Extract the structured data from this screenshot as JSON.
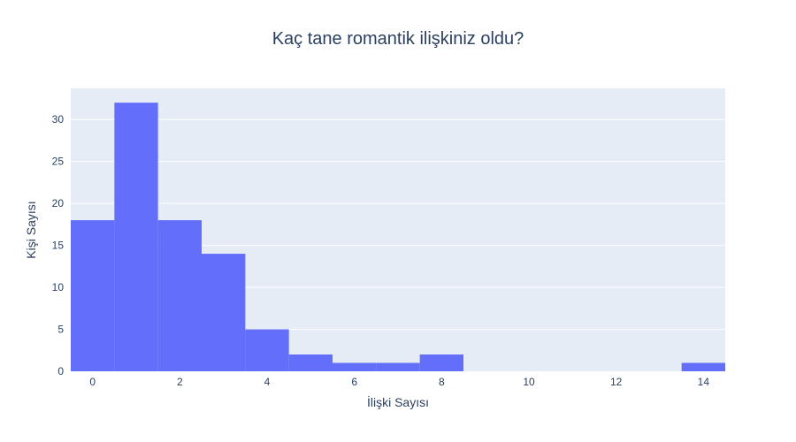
{
  "chart_data": {
    "type": "bar",
    "title": "Kaç tane romantik ilişkiniz oldu?",
    "xlabel": "İlişki Sayısı",
    "ylabel": "Kişi Sayısı",
    "bar_color": "#636efa",
    "plot_bg": "#e5ecf6",
    "grid": true,
    "x": [
      0,
      1,
      2,
      3,
      4,
      5,
      6,
      7,
      8,
      9,
      10,
      11,
      12,
      13,
      14
    ],
    "values": [
      18,
      32,
      18,
      14,
      5,
      2,
      1,
      1,
      2,
      0,
      0,
      0,
      0,
      0,
      1
    ],
    "xlim": [
      -0.5,
      14.5
    ],
    "ylim": [
      0,
      33.7
    ],
    "x_ticks": [
      0,
      2,
      4,
      6,
      8,
      10,
      12,
      14
    ],
    "y_ticks": [
      0,
      5,
      10,
      15,
      20,
      25,
      30
    ]
  }
}
